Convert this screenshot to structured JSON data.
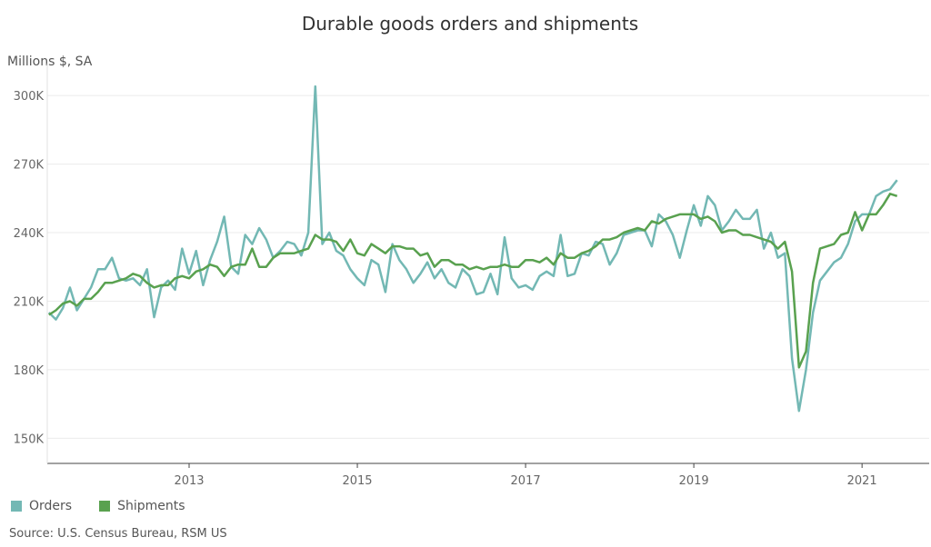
{
  "chart_data": {
    "type": "line",
    "title": "Durable goods orders and shipments",
    "ylabel": "Millions $, SA",
    "ylim": [
      139000,
      310000
    ],
    "yticks": [
      150000,
      180000,
      210000,
      240000,
      270000,
      300000
    ],
    "ytick_labels": [
      "150K",
      "180K",
      "210K",
      "240K",
      "270K",
      "300K"
    ],
    "xticks": [
      "2013",
      "2015",
      "2017",
      "2019",
      "2021"
    ],
    "x_start": "2011-05",
    "x_end": "2021-06",
    "x_frequency": "monthly",
    "grid": "horizontal",
    "legend": "bottom-left",
    "series": [
      {
        "name": "Orders",
        "color": "#73b8b4",
        "values": [
          205,
          202,
          207,
          216,
          206,
          211,
          216,
          224,
          224,
          229,
          220,
          219,
          220,
          217,
          224,
          203,
          216,
          219,
          215,
          233,
          222,
          232,
          217,
          228,
          236,
          247,
          225,
          222,
          239,
          235,
          242,
          237,
          229,
          232,
          236,
          235,
          230,
          240,
          304,
          235,
          240,
          232,
          230,
          224,
          220,
          217,
          228,
          226,
          214,
          235,
          228,
          224,
          218,
          222,
          227,
          220,
          224,
          218,
          216,
          224,
          221,
          213,
          214,
          222,
          213,
          238,
          220,
          216,
          217,
          215,
          221,
          223,
          221,
          239,
          221,
          222,
          231,
          230,
          236,
          235,
          226,
          231,
          239,
          240,
          241,
          241,
          234,
          248,
          245,
          239,
          229,
          241,
          252,
          243,
          256,
          252,
          241,
          245,
          250,
          246,
          246,
          250,
          233,
          240,
          229,
          231,
          185,
          162,
          180,
          205,
          219,
          223,
          227,
          229,
          235,
          245,
          248,
          248,
          256,
          258,
          259,
          263
        ]
      },
      {
        "name": "Shipments",
        "color": "#59a14f",
        "values": [
          204,
          206,
          209,
          210,
          208,
          211,
          211,
          214,
          218,
          218,
          219,
          220,
          222,
          221,
          218,
          216,
          217,
          217,
          220,
          221,
          220,
          223,
          224,
          226,
          225,
          221,
          225,
          226,
          226,
          233,
          225,
          225,
          229,
          231,
          231,
          231,
          232,
          233,
          239,
          237,
          237,
          236,
          232,
          237,
          231,
          230,
          235,
          233,
          231,
          234,
          234,
          233,
          233,
          230,
          231,
          225,
          228,
          228,
          226,
          226,
          224,
          225,
          224,
          225,
          225,
          226,
          225,
          225,
          228,
          228,
          227,
          229,
          226,
          231,
          229,
          229,
          231,
          232,
          234,
          237,
          237,
          238,
          240,
          241,
          242,
          241,
          245,
          244,
          246,
          247,
          248,
          248,
          248,
          246,
          247,
          245,
          240,
          241,
          241,
          239,
          239,
          238,
          237,
          236,
          233,
          236,
          223,
          181,
          188,
          218,
          233,
          234,
          235,
          239,
          240,
          249,
          241,
          248,
          248,
          252,
          257,
          256
        ]
      }
    ],
    "value_unit": "K"
  },
  "source": "Source: U.S. Census Bureau, RSM US"
}
